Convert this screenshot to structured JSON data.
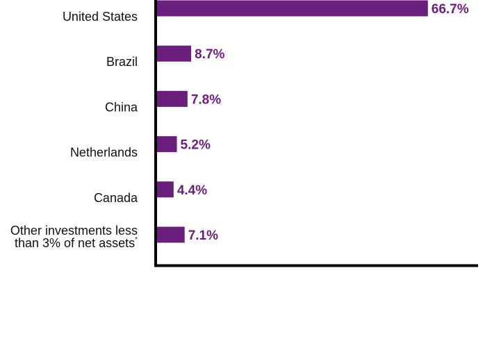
{
  "colors": {
    "bar": "#6b1f7c",
    "axis": "#000000",
    "text": "#111111"
  },
  "chart_data": {
    "type": "bar",
    "orientation": "horizontal",
    "categories": [
      [
        "United States"
      ],
      [
        "Brazil"
      ],
      [
        "China"
      ],
      [
        "Netherlands"
      ],
      [
        "Canada"
      ],
      [
        "Other investments less",
        "than 3% of net assets"
      ]
    ],
    "footnote_marker": "*",
    "values": [
      66.7,
      8.7,
      7.8,
      5.2,
      4.4,
      7.1
    ],
    "value_labels": [
      "66.7%",
      "8.7%",
      "7.8%",
      "5.2%",
      "4.4%",
      "7.1%"
    ],
    "xlim": [
      0,
      79
    ],
    "grid": false,
    "legend": "none"
  }
}
